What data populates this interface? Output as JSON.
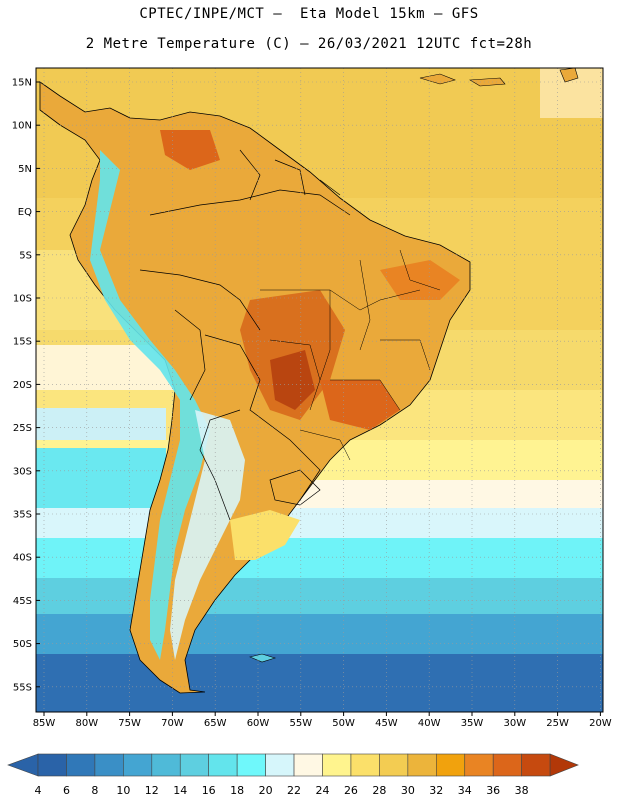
{
  "header": {
    "line1": "CPTEC/INPE/MCT –  Eta Model 15km – GFS",
    "line2": "2 Metre Temperature (C) – 26/03/2021 12UTC fct=28h"
  },
  "map": {
    "lat_labels": [
      "15N",
      "10N",
      "5N",
      "EQ",
      "5S",
      "10S",
      "15S",
      "20S",
      "25S",
      "30S",
      "35S",
      "40S",
      "45S",
      "50S",
      "55S"
    ],
    "lon_labels": [
      "85W",
      "80W",
      "75W",
      "70W",
      "65W",
      "60W",
      "55W",
      "50W",
      "45W",
      "40W",
      "35W",
      "30W",
      "25W",
      "20W"
    ]
  },
  "colorbar": {
    "labels": [
      "4",
      "6",
      "8",
      "10",
      "12",
      "14",
      "16",
      "18",
      "20",
      "22",
      "24",
      "26",
      "28",
      "30",
      "32",
      "34",
      "36",
      "38"
    ],
    "colors": [
      "#2a63a8",
      "#3078b8",
      "#3a8fc6",
      "#44a5d2",
      "#4fbad8",
      "#5ecfe0",
      "#63e4ec",
      "#6ff8fb",
      "#d6f6fb",
      "#fff8e4",
      "#fff48e",
      "#fbe06a",
      "#f3cc52",
      "#ecb43b",
      "#f1a20d",
      "#e98423",
      "#dc661a",
      "#c64a0f",
      "#b23808"
    ]
  }
}
